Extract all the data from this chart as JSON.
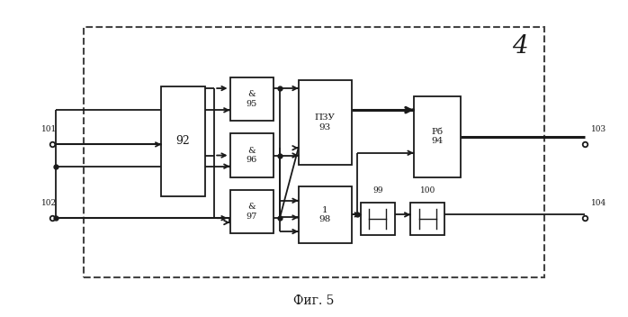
{
  "title": "Фиг. 5",
  "figure_label": "4",
  "bg": "#ffffff",
  "lc": "#1a1a1a",
  "tc": "#1a1a1a",
  "border": [
    0.13,
    0.12,
    0.74,
    0.8
  ],
  "b92": [
    0.255,
    0.38,
    0.07,
    0.35
  ],
  "b95": [
    0.365,
    0.62,
    0.07,
    0.14
  ],
  "b96": [
    0.365,
    0.44,
    0.07,
    0.14
  ],
  "b97": [
    0.365,
    0.26,
    0.07,
    0.14
  ],
  "b93": [
    0.475,
    0.48,
    0.085,
    0.27
  ],
  "b98": [
    0.475,
    0.23,
    0.085,
    0.18
  ],
  "b94": [
    0.66,
    0.44,
    0.075,
    0.26
  ],
  "b99": [
    0.575,
    0.255,
    0.055,
    0.105
  ],
  "b100": [
    0.655,
    0.255,
    0.055,
    0.105
  ],
  "i101": [
    0.08,
    0.545
  ],
  "i102": [
    0.08,
    0.31
  ],
  "o103": [
    0.935,
    0.545
  ],
  "o104": [
    0.935,
    0.31
  ]
}
